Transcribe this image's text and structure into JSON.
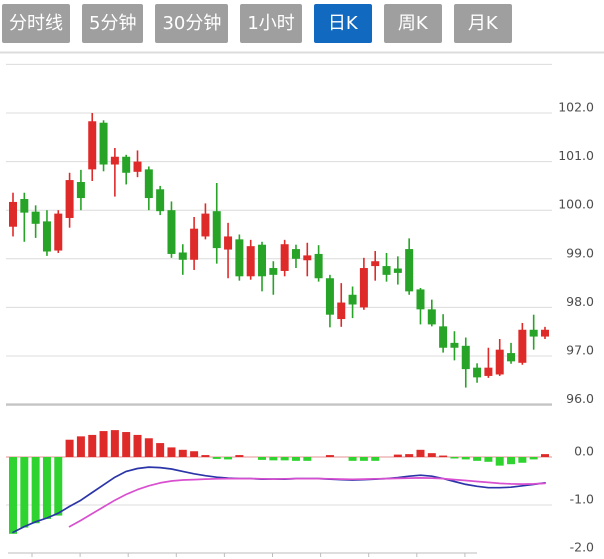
{
  "toolbar": {
    "buttons": [
      {
        "label": "分时线",
        "active": false
      },
      {
        "label": "5分钟",
        "active": false
      },
      {
        "label": "30分钟",
        "active": false
      },
      {
        "label": "1小时",
        "active": false
      },
      {
        "label": "日K",
        "active": true
      },
      {
        "label": "周K",
        "active": false
      },
      {
        "label": "月K",
        "active": false
      }
    ],
    "active_bg": "#1269c0",
    "inactive_bg": "#9f9f9f",
    "text_color": "#ffffff"
  },
  "chart_data": {
    "type": "candlestick",
    "title": "",
    "legend_position": "none",
    "grid": true,
    "price_axis": {
      "side": "right",
      "ticks": [
        {
          "value": 103.0,
          "label": ""
        },
        {
          "value": 102.0,
          "label": "102.0"
        },
        {
          "value": 101.0,
          "label": "101.0"
        },
        {
          "value": 100.0,
          "label": "100.0"
        },
        {
          "value": 99.0,
          "label": "99.0"
        },
        {
          "value": 98.0,
          "label": "98.0"
        },
        {
          "value": 97.0,
          "label": "97.0"
        },
        {
          "value": 96.0,
          "label": "96.0"
        }
      ],
      "range": [
        95.8,
        103.0
      ]
    },
    "macd_axis": {
      "side": "right",
      "ticks": [
        {
          "value": 0.0,
          "label": "0.0"
        },
        {
          "value": -1.0,
          "label": "-1.0"
        },
        {
          "value": -2.0,
          "label": "-2.0"
        }
      ],
      "range": [
        -2.1,
        0.6
      ]
    },
    "colors": {
      "up": "#df2a2a",
      "down": "#27a327",
      "hist_up": "#df2a2a",
      "hist_down": "#2fd32f",
      "dif_line": "#2b35a8",
      "dea_line": "#d84fd0",
      "grid": "#dcdcdc",
      "grid_heavy": "#c4c4c4",
      "zero_line": "#eaa8a8",
      "axis_label": "#4d4d4d",
      "axis_line": "#bdbdbd"
    },
    "candles_ohlc": [
      [
        99.66,
        100.36,
        99.46,
        100.17
      ],
      [
        100.23,
        100.36,
        99.35,
        99.95
      ],
      [
        99.97,
        100.1,
        99.43,
        99.72
      ],
      [
        99.77,
        100.0,
        99.06,
        99.15
      ],
      [
        99.17,
        100.0,
        99.12,
        99.93
      ],
      [
        99.84,
        100.77,
        99.64,
        100.62
      ],
      [
        100.58,
        100.83,
        100.0,
        100.25
      ],
      [
        100.84,
        102.0,
        100.6,
        101.83
      ],
      [
        101.8,
        101.85,
        100.8,
        100.94
      ],
      [
        100.94,
        101.28,
        100.28,
        101.1
      ],
      [
        101.1,
        101.14,
        100.53,
        100.77
      ],
      [
        100.79,
        101.23,
        100.68,
        101.0
      ],
      [
        100.84,
        100.9,
        100.0,
        100.25
      ],
      [
        100.43,
        100.5,
        99.9,
        99.98
      ],
      [
        100.0,
        100.18,
        99.02,
        99.1
      ],
      [
        99.13,
        99.3,
        98.67,
        98.98
      ],
      [
        98.98,
        99.86,
        98.77,
        99.62
      ],
      [
        99.46,
        100.14,
        99.4,
        99.93
      ],
      [
        99.98,
        100.56,
        98.9,
        99.22
      ],
      [
        99.19,
        99.74,
        98.6,
        99.46
      ],
      [
        99.4,
        99.5,
        98.55,
        98.64
      ],
      [
        98.64,
        99.39,
        98.57,
        99.26
      ],
      [
        99.29,
        99.35,
        98.33,
        98.64
      ],
      [
        98.81,
        98.95,
        98.26,
        98.67
      ],
      [
        98.75,
        99.39,
        98.64,
        99.3
      ],
      [
        99.2,
        99.29,
        98.81,
        99.0
      ],
      [
        98.97,
        99.33,
        98.64,
        99.07
      ],
      [
        99.1,
        99.28,
        98.53,
        98.6
      ],
      [
        98.6,
        98.67,
        97.59,
        97.85
      ],
      [
        97.76,
        98.5,
        97.6,
        98.1
      ],
      [
        98.26,
        98.43,
        97.78,
        98.06
      ],
      [
        98.0,
        99.02,
        97.95,
        98.81
      ],
      [
        98.85,
        99.16,
        98.55,
        98.95
      ],
      [
        98.85,
        99.12,
        98.53,
        98.67
      ],
      [
        98.8,
        99.05,
        98.47,
        98.71
      ],
      [
        99.2,
        99.42,
        98.26,
        98.33
      ],
      [
        98.37,
        98.4,
        97.65,
        97.96
      ],
      [
        97.96,
        98.16,
        97.61,
        97.65
      ],
      [
        97.61,
        97.86,
        97.07,
        97.17
      ],
      [
        97.27,
        97.51,
        96.91,
        97.17
      ],
      [
        97.21,
        97.38,
        96.35,
        96.73
      ],
      [
        96.76,
        96.85,
        96.45,
        96.56
      ],
      [
        96.59,
        97.17,
        96.55,
        96.76
      ],
      [
        96.62,
        97.35,
        96.59,
        97.13
      ],
      [
        97.06,
        97.27,
        96.84,
        96.89
      ],
      [
        96.86,
        97.68,
        96.82,
        97.54
      ],
      [
        97.54,
        97.85,
        97.13,
        97.4
      ],
      [
        97.4,
        97.6,
        97.35,
        97.54
      ]
    ],
    "macd": {
      "histogram": [
        -1.6,
        -1.47,
        -1.38,
        -1.29,
        -1.22,
        0.36,
        0.43,
        0.46,
        0.54,
        0.56,
        0.52,
        0.46,
        0.39,
        0.29,
        0.2,
        0.15,
        0.12,
        0.04,
        -0.04,
        -0.05,
        0.04,
        0,
        -0.06,
        -0.07,
        -0.07,
        -0.08,
        -0.08,
        0,
        0.04,
        0,
        -0.08,
        -0.08,
        -0.08,
        0,
        0.05,
        0.06,
        0.15,
        0.08,
        0.03,
        -0.03,
        -0.05,
        -0.08,
        -0.1,
        -0.18,
        -0.15,
        -0.12,
        -0.05,
        0.06
      ],
      "dif": [
        -1.57,
        -1.45,
        -1.35,
        -1.27,
        -1.17,
        -1.03,
        -0.9,
        -0.74,
        -0.58,
        -0.42,
        -0.3,
        -0.24,
        -0.21,
        -0.22,
        -0.25,
        -0.3,
        -0.35,
        -0.39,
        -0.42,
        -0.44,
        -0.45,
        -0.45,
        -0.46,
        -0.46,
        -0.46,
        -0.45,
        -0.45,
        -0.45,
        -0.46,
        -0.47,
        -0.48,
        -0.47,
        -0.46,
        -0.45,
        -0.43,
        -0.4,
        -0.38,
        -0.4,
        -0.45,
        -0.51,
        -0.57,
        -0.61,
        -0.64,
        -0.64,
        -0.63,
        -0.6,
        -0.57,
        -0.54
      ],
      "dea": [
        null,
        null,
        null,
        null,
        null,
        -1.45,
        -1.32,
        -1.18,
        -1.04,
        -0.9,
        -0.78,
        -0.68,
        -0.6,
        -0.54,
        -0.5,
        -0.48,
        -0.47,
        -0.46,
        -0.455,
        -0.45,
        -0.45,
        -0.45,
        -0.455,
        -0.46,
        -0.455,
        -0.45,
        -0.45,
        -0.45,
        -0.455,
        -0.46,
        -0.465,
        -0.46,
        -0.455,
        -0.45,
        -0.445,
        -0.44,
        -0.435,
        -0.44,
        -0.45,
        -0.47,
        -0.49,
        -0.51,
        -0.53,
        -0.55,
        -0.56,
        -0.565,
        -0.56,
        -0.55
      ]
    },
    "x_axis": {
      "labels": [],
      "tick_count": 10
    }
  }
}
